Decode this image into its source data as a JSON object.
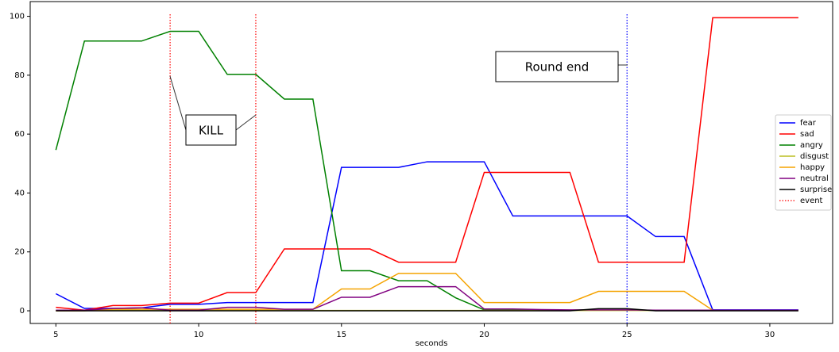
{
  "chart_data": {
    "type": "line",
    "x_label": "seconds",
    "x": [
      5,
      6,
      7,
      8,
      9,
      10,
      11,
      12,
      13,
      14,
      15,
      16,
      17,
      18,
      19,
      20,
      21,
      22,
      23,
      24,
      25,
      26,
      27,
      28,
      29,
      30,
      31
    ],
    "xlim": [
      4.1,
      32.2
    ],
    "xticks": [
      5,
      10,
      15,
      20,
      25,
      30
    ],
    "ylim": [
      -4.3,
      105
    ],
    "yticks": [
      0,
      20,
      40,
      60,
      80,
      100
    ],
    "legend": "center right",
    "series": [
      {
        "name": "fear",
        "color": "#0000ff",
        "values": [
          5.8,
          0.8,
          0.8,
          1,
          2.2,
          2.2,
          2.8,
          2.8,
          2.8,
          2.8,
          48.7,
          48.7,
          48.7,
          50.6,
          50.6,
          50.6,
          32.2,
          32.2,
          32.2,
          32.2,
          32.2,
          25.2,
          25.2,
          0.3,
          0.3,
          0.3,
          0.3
        ]
      },
      {
        "name": "sad",
        "color": "#ff0000",
        "values": [
          1.2,
          0.2,
          1.8,
          1.8,
          2.6,
          2.6,
          6.2,
          6.2,
          21,
          21,
          21,
          21,
          16.5,
          16.5,
          16.5,
          47,
          47,
          47,
          47,
          16.5,
          16.5,
          16.5,
          16.5,
          99.5,
          99.5,
          99.5,
          99.5
        ]
      },
      {
        "name": "angry",
        "color": "#008000",
        "values": [
          54.6,
          91.6,
          91.6,
          91.6,
          94.9,
          94.9,
          80.3,
          80.3,
          71.9,
          71.9,
          13.6,
          13.6,
          10.2,
          10.2,
          4.4,
          0.3,
          0.2,
          0.2,
          0.2,
          0.2,
          0.2,
          0.2,
          0.2,
          0.2,
          0.2,
          0.2,
          0.2
        ]
      },
      {
        "name": "disgust",
        "color": "#bcbd22",
        "values": [
          0.1,
          0.1,
          0.1,
          0.1,
          0.1,
          0.1,
          0.1,
          0.1,
          0.1,
          0.1,
          0.1,
          0.1,
          0.1,
          0.1,
          0.1,
          0.1,
          0.1,
          0.1,
          0.1,
          0.1,
          0.1,
          0.1,
          0.1,
          0.1,
          0.1,
          0.1,
          0.1
        ]
      },
      {
        "name": "happy",
        "color": "#f5a300",
        "values": [
          0,
          0,
          0.5,
          0.5,
          0.5,
          0.5,
          0.5,
          0.5,
          0.5,
          0.5,
          7.4,
          7.4,
          12.7,
          12.7,
          12.7,
          2.8,
          2.8,
          2.8,
          2.8,
          6.6,
          6.6,
          6.6,
          6.6,
          0.2,
          0.2,
          0.2,
          0.2
        ]
      },
      {
        "name": "neutral",
        "color": "#800080",
        "values": [
          0.2,
          0.2,
          0.8,
          1,
          0.2,
          0.2,
          1.2,
          1.2,
          0.5,
          0.5,
          4.6,
          4.6,
          8.2,
          8.2,
          8.2,
          0.6,
          0.6,
          0.4,
          0.3,
          0.3,
          0.3,
          0.2,
          0.2,
          0.2,
          0.2,
          0.2,
          0.2
        ]
      },
      {
        "name": "surprise",
        "color": "#000000",
        "values": [
          0,
          0,
          0,
          0,
          0,
          0,
          0,
          0,
          0,
          0,
          0,
          0,
          0,
          0,
          0,
          0,
          0,
          0,
          0,
          0.7,
          0.7,
          0,
          0,
          0,
          0,
          0,
          0
        ]
      }
    ],
    "events": {
      "name": "event",
      "color": "#ff0000",
      "lines": [
        {
          "x": 9,
          "color": "#ff0000"
        },
        {
          "x": 12,
          "color": "#ff0000"
        },
        {
          "x": 25,
          "color": "#0000ff"
        }
      ]
    },
    "annotations": [
      {
        "text": "KILL"
      },
      {
        "text": "Round end"
      }
    ]
  }
}
